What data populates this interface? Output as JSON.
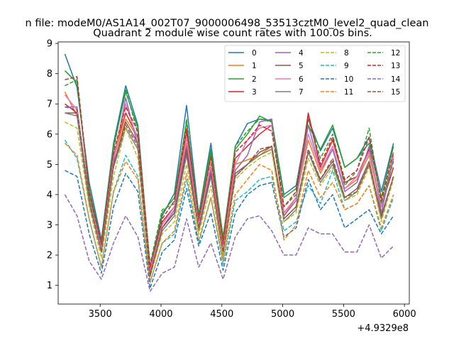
{
  "chart_data": {
    "type": "line",
    "suptitle": "n file: modeM0/AS1A14_002T07_9000006498_53513cztM0_level2_quad_clean",
    "title": "Quadrant 2 module wise count rates with 100.0s bins.",
    "xlabel": "",
    "ylabel": "",
    "x_offset_label": "+4.9329e8",
    "xlim": [
      3155,
      6040
    ],
    "ylim": [
      0.38,
      9.05
    ],
    "xticks": [
      3500,
      4000,
      4500,
      5000,
      5500,
      6000
    ],
    "yticks": [
      1,
      2,
      3,
      4,
      5,
      6,
      7,
      8,
      9
    ],
    "grid": false,
    "legend_position": "top-right",
    "x": [
      3210,
      3310,
      3410,
      3510,
      3610,
      3710,
      3810,
      3910,
      4010,
      4110,
      4210,
      4310,
      4410,
      4510,
      4610,
      4710,
      4810,
      4910,
      5010,
      5110,
      5210,
      5310,
      5410,
      5510,
      5610,
      5710,
      5810,
      5910
    ],
    "series": [
      {
        "name": "0",
        "color": "#1f77b4",
        "dash": "solid",
        "values": [
          8.65,
          7.55,
          4.4,
          2.5,
          5.7,
          7.6,
          6.3,
          1.5,
          3.3,
          4.05,
          6.95,
          3.35,
          5.7,
          2.45,
          5.6,
          6.35,
          6.5,
          6.45,
          4.0,
          4.3,
          6.5,
          5.45,
          6.2,
          4.9,
          5.2,
          5.9,
          4.1,
          5.7
        ]
      },
      {
        "name": "1",
        "color": "#ff7f0e",
        "dash": "solid",
        "values": [
          7.4,
          6.6,
          3.9,
          2.3,
          5.2,
          6.5,
          5.9,
          1.5,
          3.0,
          3.6,
          5.7,
          3.0,
          4.9,
          2.2,
          5.0,
          5.15,
          5.3,
          5.6,
          3.3,
          3.9,
          5.8,
          4.7,
          5.5,
          4.2,
          4.5,
          5.3,
          3.6,
          5.4
        ]
      },
      {
        "name": "2",
        "color": "#2ca02c",
        "dash": "solid",
        "values": [
          8.1,
          7.7,
          4.2,
          2.4,
          5.6,
          7.4,
          6.2,
          1.6,
          3.4,
          3.9,
          6.4,
          3.3,
          5.5,
          2.6,
          5.5,
          6.0,
          6.6,
          6.4,
          3.9,
          4.2,
          6.3,
          5.5,
          6.3,
          4.9,
          5.2,
          5.7,
          3.9,
          5.6
        ]
      },
      {
        "name": "3",
        "color": "#d62728",
        "dash": "solid",
        "values": [
          7.0,
          6.7,
          4.0,
          2.3,
          5.3,
          6.7,
          5.9,
          1.4,
          3.1,
          3.6,
          6.1,
          3.1,
          5.3,
          2.3,
          5.2,
          5.6,
          6.0,
          6.3,
          3.4,
          3.9,
          6.7,
          4.9,
          5.8,
          4.4,
          4.6,
          5.5,
          3.6,
          4.9
        ]
      },
      {
        "name": "4",
        "color": "#9467bd",
        "dash": "solid",
        "values": [
          6.9,
          6.9,
          3.9,
          2.2,
          5.1,
          7.2,
          5.6,
          1.6,
          2.9,
          3.5,
          5.6,
          2.9,
          4.8,
          2.1,
          4.8,
          5.3,
          6.4,
          6.5,
          3.3,
          3.8,
          6.3,
          4.8,
          5.5,
          4.1,
          4.4,
          5.6,
          3.4,
          5.2
        ]
      },
      {
        "name": "5",
        "color": "#8c564b",
        "dash": "solid",
        "values": [
          6.7,
          6.7,
          3.8,
          2.1,
          5.0,
          6.4,
          5.7,
          1.3,
          2.9,
          3.4,
          5.5,
          2.9,
          4.7,
          2.1,
          4.7,
          5.0,
          5.4,
          5.6,
          3.2,
          3.6,
          5.4,
          4.5,
          5.1,
          3.9,
          4.2,
          5.1,
          3.3,
          4.6
        ]
      },
      {
        "name": "6",
        "color": "#e377c2",
        "dash": "solid",
        "values": [
          7.3,
          6.8,
          3.9,
          2.2,
          5.2,
          7.0,
          5.8,
          1.5,
          3.0,
          3.6,
          5.9,
          3.0,
          5.0,
          2.2,
          5.0,
          5.8,
          6.2,
          6.3,
          3.4,
          3.9,
          6.0,
          4.8,
          5.6,
          4.2,
          4.6,
          5.4,
          3.6,
          5.3
        ]
      },
      {
        "name": "7",
        "color": "#7f7f7f",
        "dash": "solid",
        "values": [
          6.7,
          6.6,
          3.7,
          2.1,
          4.9,
          6.2,
          5.5,
          1.3,
          2.8,
          3.3,
          5.3,
          2.8,
          4.6,
          2.0,
          4.6,
          5.0,
          5.3,
          5.5,
          3.1,
          3.5,
          5.4,
          4.4,
          5.0,
          3.8,
          4.1,
          5.0,
          3.2,
          4.6
        ]
      },
      {
        "name": "8",
        "color": "#bcbd22",
        "dash": "dashed",
        "values": [
          6.4,
          6.2,
          3.6,
          1.9,
          4.6,
          6.2,
          5.2,
          1.3,
          2.7,
          3.1,
          5.0,
          2.7,
          4.3,
          1.9,
          4.5,
          4.9,
          5.2,
          5.4,
          3.1,
          3.4,
          5.2,
          4.3,
          4.9,
          3.8,
          4.0,
          4.9,
          3.1,
          4.5
        ]
      },
      {
        "name": "9",
        "color": "#17becf",
        "dash": "dashed",
        "values": [
          5.8,
          5.2,
          3.2,
          1.6,
          4.1,
          5.3,
          4.6,
          1.1,
          2.4,
          2.7,
          4.5,
          2.4,
          3.9,
          1.7,
          3.8,
          4.1,
          4.5,
          4.6,
          2.8,
          3.1,
          4.3,
          3.7,
          4.8,
          3.5,
          3.7,
          4.3,
          2.8,
          3.9
        ]
      },
      {
        "name": "10",
        "color": "#1f77b4",
        "dash": "dashed",
        "values": [
          4.8,
          4.6,
          2.7,
          1.4,
          3.6,
          4.7,
          4.1,
          0.9,
          2.1,
          2.5,
          4.2,
          2.3,
          3.4,
          1.5,
          3.4,
          4.0,
          4.3,
          4.4,
          2.6,
          2.9,
          4.5,
          3.5,
          4.0,
          2.9,
          3.2,
          3.5,
          2.7,
          3.3
        ]
      },
      {
        "name": "11",
        "color": "#ff7f0e",
        "dash": "dashed",
        "values": [
          5.7,
          5.3,
          3.2,
          1.6,
          4.1,
          5.1,
          4.5,
          1.1,
          2.4,
          2.8,
          4.7,
          2.5,
          3.9,
          1.8,
          4.0,
          4.5,
          5.0,
          4.8,
          2.5,
          3.0,
          4.8,
          3.9,
          4.4,
          3.5,
          3.7,
          4.3,
          2.9,
          4.0
        ]
      },
      {
        "name": "12",
        "color": "#2ca02c",
        "dash": "dashed",
        "values": [
          7.6,
          7.8,
          4.0,
          2.4,
          5.5,
          7.5,
          6.0,
          1.7,
          3.5,
          3.7,
          6.5,
          3.2,
          5.4,
          2.5,
          5.6,
          6.1,
          6.5,
          6.4,
          3.6,
          4.0,
          6.5,
          5.2,
          6.0,
          4.3,
          4.8,
          6.2,
          3.7,
          5.1
        ]
      },
      {
        "name": "13",
        "color": "#d62728",
        "dash": "dashed",
        "values": [
          7.8,
          7.9,
          4.1,
          2.4,
          5.4,
          6.9,
          6.1,
          1.6,
          3.2,
          3.8,
          6.2,
          3.2,
          5.2,
          2.4,
          5.4,
          5.8,
          6.3,
          6.1,
          3.6,
          4.1,
          6.6,
          5.0,
          5.9,
          4.5,
          4.8,
          5.9,
          3.8,
          5.4
        ]
      },
      {
        "name": "14",
        "color": "#9467bd",
        "dash": "dashed",
        "values": [
          4.0,
          3.3,
          1.8,
          1.2,
          2.4,
          3.3,
          2.6,
          0.8,
          1.4,
          1.6,
          3.2,
          1.6,
          2.4,
          1.2,
          2.6,
          3.2,
          3.3,
          2.8,
          2.0,
          2.0,
          2.9,
          2.7,
          2.7,
          2.1,
          2.1,
          3.0,
          1.9,
          2.3
        ]
      },
      {
        "name": "15",
        "color": "#8c564b",
        "dash": "dashed",
        "values": [
          6.9,
          6.8,
          3.8,
          2.1,
          5.0,
          6.3,
          5.6,
          1.3,
          2.9,
          3.4,
          5.4,
          2.9,
          4.7,
          2.1,
          4.6,
          5.0,
          5.5,
          5.6,
          3.2,
          3.6,
          5.5,
          4.5,
          5.2,
          3.9,
          4.1,
          5.0,
          3.3,
          4.6
        ]
      }
    ]
  }
}
